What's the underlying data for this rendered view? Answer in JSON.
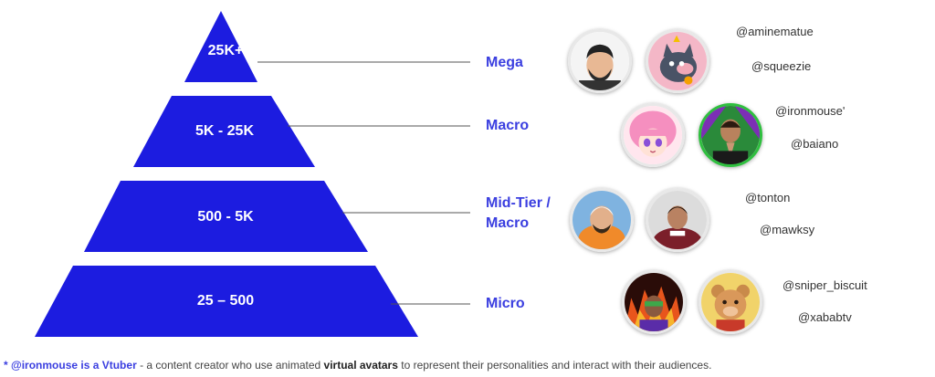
{
  "colors": {
    "pyramid_fill": "#1c1ce0",
    "tier_text": "#3b3fe0",
    "connector": "#555555"
  },
  "tiers": [
    {
      "name": "Mega",
      "range": "25K+"
    },
    {
      "name": "Macro",
      "range": "5K - 25K"
    },
    {
      "name": "Mid-Tier /",
      "name_line2": "Macro",
      "range": "500 - 5K"
    },
    {
      "name": "Micro",
      "range": "25 – 500"
    }
  ],
  "creators": [
    {
      "handle": "@aminematue",
      "avatar": "bearded-man-avatar"
    },
    {
      "handle": "@squeezie",
      "avatar": "cartoon-cat-avatar"
    },
    {
      "handle": "@ironmouse'",
      "avatar": "anime-girl-avatar"
    },
    {
      "handle": "@baiano",
      "avatar": "praying-man-avatar"
    },
    {
      "handle": "@tonton",
      "avatar": "orange-hoodie-avatar"
    },
    {
      "handle": "@mawksy",
      "avatar": "esports-jersey-avatar"
    },
    {
      "handle": "@sniper_biscuit",
      "avatar": "fire-background-avatar"
    },
    {
      "handle": "@xababtv",
      "avatar": "cartoon-bear-avatar"
    }
  ],
  "footnote": {
    "accent": "* @ironmouse is a Vtuber",
    "text1": " - a content creator who use animated ",
    "bold": "virtual avatars",
    "text2": " to represent their personalities and interact with their audiences."
  }
}
